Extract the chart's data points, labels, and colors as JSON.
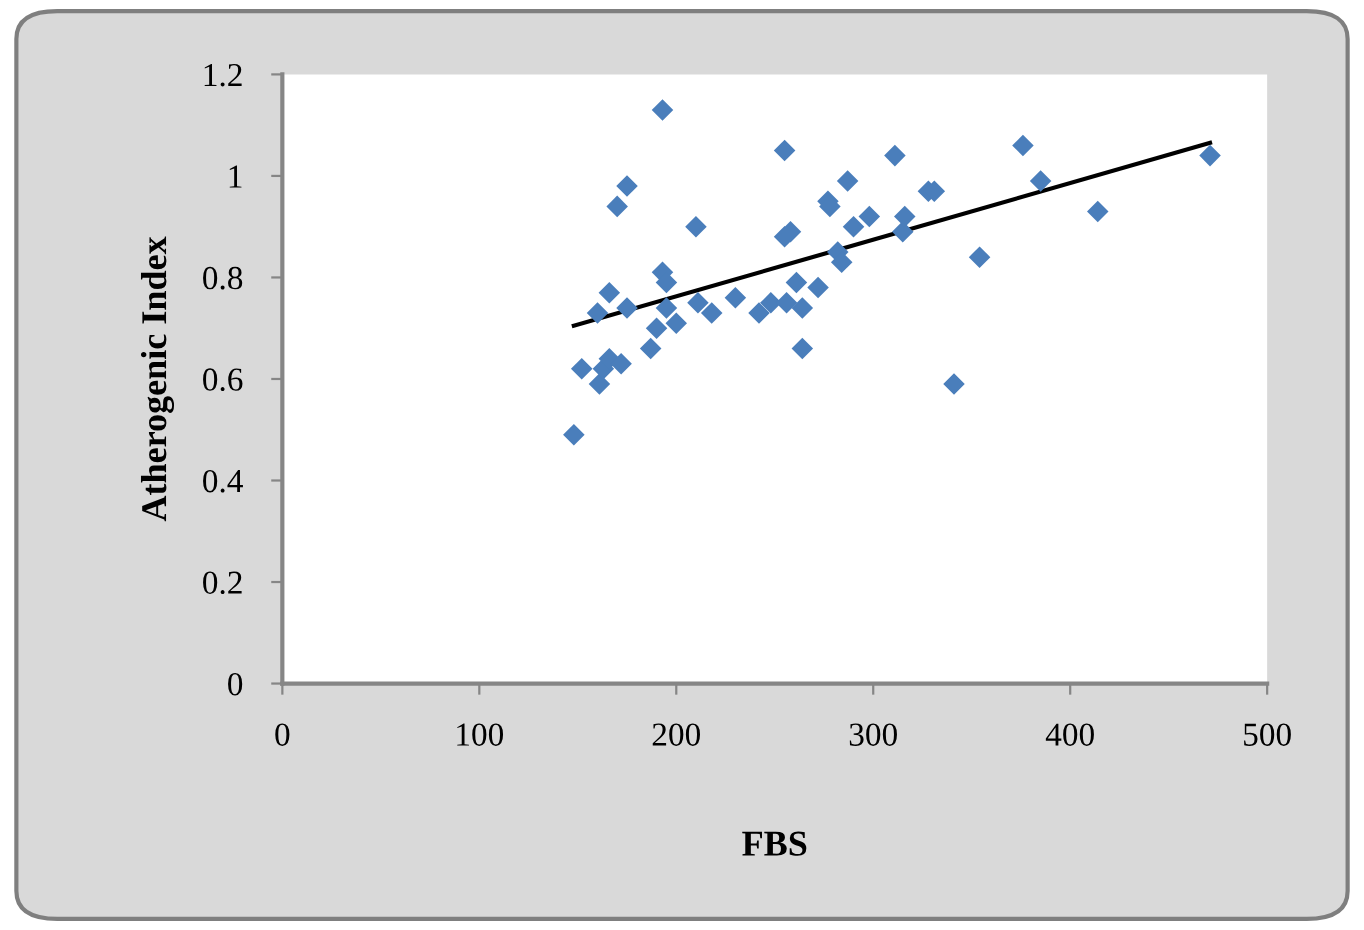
{
  "chart_data": {
    "type": "scatter",
    "xlabel": "FBS",
    "ylabel": "Atherogenic Index",
    "xlim": [
      0,
      500
    ],
    "xticks": [
      0,
      100,
      200,
      300,
      400,
      500
    ],
    "ylim": [
      0,
      1.2
    ],
    "yticks": [
      0,
      0.2,
      0.4,
      0.6,
      0.8,
      1,
      1.2
    ],
    "grid": false,
    "series": [
      {
        "marker": "diamond",
        "color": "#4a7ebb",
        "x": [
          148,
          152,
          160,
          161,
          163,
          166,
          166,
          170,
          172,
          175,
          175,
          187,
          190,
          193,
          193,
          195,
          195,
          200,
          210,
          211,
          218,
          230,
          242,
          248,
          255,
          255,
          258,
          256,
          261,
          264,
          264,
          272,
          277,
          278,
          282,
          284,
          287,
          290,
          298,
          311,
          315,
          316,
          328,
          331,
          341,
          354,
          376,
          385,
          414,
          471
        ],
        "values": [
          0.49,
          0.62,
          0.73,
          0.59,
          0.62,
          0.64,
          0.77,
          0.94,
          0.63,
          0.98,
          0.74,
          0.66,
          0.7,
          1.13,
          0.81,
          0.79,
          0.74,
          0.71,
          0.9,
          0.75,
          0.73,
          0.76,
          0.73,
          0.75,
          1.05,
          0.88,
          0.89,
          0.75,
          0.79,
          0.74,
          0.66,
          0.78,
          0.95,
          0.94,
          0.85,
          0.83,
          0.99,
          0.9,
          0.92,
          1.04,
          0.89,
          0.92,
          0.97,
          0.97,
          0.59,
          0.84,
          1.06,
          0.99,
          0.93,
          1.04
        ]
      },
      {
        "type": "line",
        "marker": "none",
        "color": "#000000",
        "x": [
          148,
          471
        ],
        "values": [
          0.705,
          1.065
        ]
      }
    ]
  }
}
